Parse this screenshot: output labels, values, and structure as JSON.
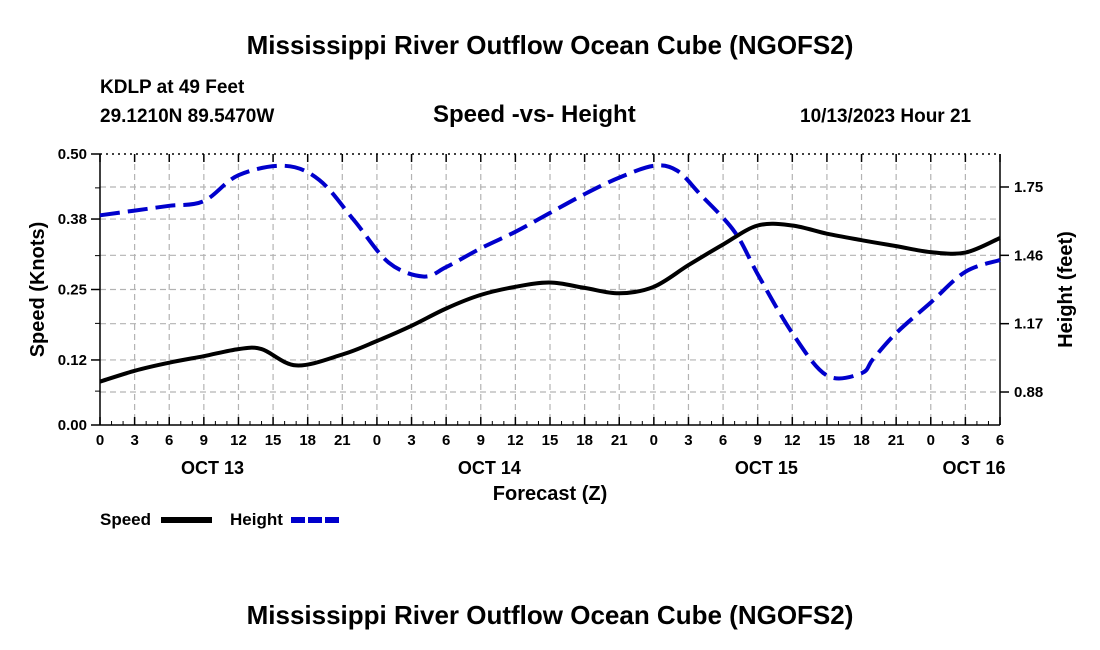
{
  "page": {
    "title_top": "Mississippi River Outflow Ocean Cube (NGOFS2)",
    "title_bottom": "Mississippi River Outflow Ocean Cube (NGOFS2)",
    "station_line1": "KDLP at 49 Feet",
    "station_line2": "29.1210N  89.5470W",
    "subtitle": "Speed -vs- Height",
    "timestamp": "10/13/2023 Hour 21"
  },
  "chart_data": {
    "type": "line",
    "title": "Speed -vs- Height",
    "xlabel": "Forecast (Z)",
    "ylabel": "Speed (Knots)",
    "y2label": "Height (feet)",
    "x_range_hours": [
      0,
      78
    ],
    "ylim": [
      0,
      0.5
    ],
    "y2lim": [
      0.74,
      1.89
    ],
    "y_ticks": [
      "0.00",
      "0.12",
      "0.25",
      "0.38",
      "0.50"
    ],
    "y2_ticks": [
      "0.88",
      "1.17",
      "1.46",
      "1.75"
    ],
    "x_ticks": [
      "0",
      "3",
      "6",
      "9",
      "12",
      "15",
      "18",
      "21",
      "0",
      "3",
      "6",
      "9",
      "12",
      "15",
      "18",
      "21",
      "0",
      "3",
      "6",
      "9",
      "12",
      "15",
      "18",
      "21",
      "0",
      "3",
      "6"
    ],
    "date_labels": [
      {
        "label": "OCT 13",
        "hour": 9.75
      },
      {
        "label": "OCT 14",
        "hour": 33.75
      },
      {
        "label": "OCT 15",
        "hour": 57.75
      },
      {
        "label": "OCT 16",
        "hour": 75.75
      }
    ],
    "grid": true,
    "legend": [
      {
        "name": "Speed",
        "color": "#000000",
        "style": "solid"
      },
      {
        "name": "Height",
        "color": "#0000cc",
        "style": "dashed"
      }
    ],
    "series": [
      {
        "name": "Speed",
        "axis": "left",
        "color": "#000000",
        "x": [
          0,
          3,
          6,
          9,
          12,
          14,
          17,
          21,
          24,
          27,
          30,
          33,
          36,
          39,
          42,
          45,
          48,
          51,
          54,
          57,
          60,
          63,
          66,
          69,
          72,
          75,
          78
        ],
        "values": [
          0.08,
          0.1,
          0.115,
          0.127,
          0.14,
          0.14,
          0.11,
          0.13,
          0.155,
          0.183,
          0.215,
          0.24,
          0.255,
          0.263,
          0.253,
          0.243,
          0.255,
          0.295,
          0.333,
          0.368,
          0.368,
          0.353,
          0.341,
          0.33,
          0.319,
          0.318,
          0.345
        ]
      },
      {
        "name": "Height",
        "axis": "right",
        "color": "#0000cc",
        "x": [
          0,
          3,
          6,
          9,
          12,
          16,
          19,
          22,
          25,
          28,
          30,
          33,
          36,
          39,
          42,
          45,
          48,
          50,
          52,
          55,
          57,
          60,
          63,
          66,
          67,
          69,
          72,
          75,
          78
        ],
        "values": [
          1.63,
          1.65,
          1.67,
          1.69,
          1.8,
          1.84,
          1.78,
          1.61,
          1.43,
          1.37,
          1.41,
          1.49,
          1.56,
          1.64,
          1.72,
          1.79,
          1.84,
          1.82,
          1.72,
          1.56,
          1.38,
          1.13,
          0.95,
          0.96,
          1.02,
          1.13,
          1.26,
          1.39,
          1.44
        ]
      }
    ]
  }
}
